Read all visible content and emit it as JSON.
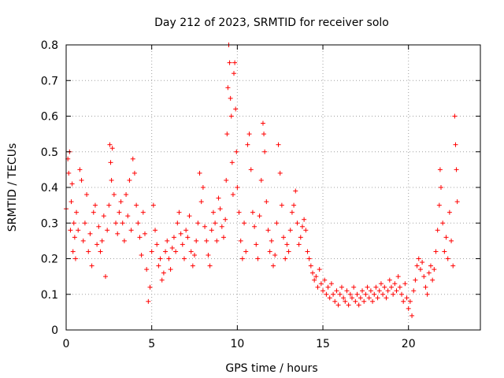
{
  "chart_data": {
    "type": "scatter",
    "title": "Day 212 of 2023, SRMTID for receiver solo",
    "xlabel": "GPS time / hours",
    "ylabel": "SRMTID / TECUs",
    "xlim": [
      0,
      24.2
    ],
    "ylim": [
      0,
      0.8
    ],
    "x_ticks": [
      0,
      5,
      10,
      15,
      20
    ],
    "y_ticks": [
      0,
      0.1,
      0.2,
      0.3,
      0.4,
      0.5,
      0.6,
      0.7,
      0.8
    ],
    "x_tick_labels": [
      "0",
      "5",
      "10",
      "15",
      "20"
    ],
    "y_tick_labels": [
      "0",
      "0.1",
      "0.2",
      "0.3",
      "0.4",
      "0.5",
      "0.6",
      "0.7",
      "0.8"
    ],
    "grid": true,
    "marker": "+",
    "series": [
      {
        "name": "SRMTID",
        "color": "#ff0000",
        "points": [
          [
            0.0,
            0.34
          ],
          [
            0.1,
            0.48
          ],
          [
            0.15,
            0.44
          ],
          [
            0.2,
            0.5
          ],
          [
            0.25,
            0.28
          ],
          [
            0.3,
            0.36
          ],
          [
            0.35,
            0.41
          ],
          [
            0.4,
            0.22
          ],
          [
            0.45,
            0.3
          ],
          [
            0.5,
            0.26
          ],
          [
            0.55,
            0.2
          ],
          [
            0.6,
            0.33
          ],
          [
            0.7,
            0.28
          ],
          [
            0.8,
            0.45
          ],
          [
            0.9,
            0.42
          ],
          [
            1.0,
            0.25
          ],
          [
            1.1,
            0.3
          ],
          [
            1.2,
            0.38
          ],
          [
            1.3,
            0.22
          ],
          [
            1.4,
            0.27
          ],
          [
            1.5,
            0.18
          ],
          [
            1.6,
            0.33
          ],
          [
            1.7,
            0.35
          ],
          [
            1.8,
            0.24
          ],
          [
            1.9,
            0.29
          ],
          [
            2.0,
            0.22
          ],
          [
            2.1,
            0.25
          ],
          [
            2.2,
            0.32
          ],
          [
            2.3,
            0.15
          ],
          [
            2.4,
            0.28
          ],
          [
            2.5,
            0.35
          ],
          [
            2.55,
            0.52
          ],
          [
            2.6,
            0.47
          ],
          [
            2.65,
            0.42
          ],
          [
            2.7,
            0.51
          ],
          [
            2.8,
            0.38
          ],
          [
            2.9,
            0.3
          ],
          [
            3.0,
            0.27
          ],
          [
            3.1,
            0.33
          ],
          [
            3.2,
            0.36
          ],
          [
            3.3,
            0.3
          ],
          [
            3.4,
            0.25
          ],
          [
            3.5,
            0.38
          ],
          [
            3.6,
            0.32
          ],
          [
            3.7,
            0.42
          ],
          [
            3.8,
            0.28
          ],
          [
            3.9,
            0.48
          ],
          [
            4.0,
            0.44
          ],
          [
            4.1,
            0.35
          ],
          [
            4.2,
            0.3
          ],
          [
            4.3,
            0.26
          ],
          [
            4.4,
            0.21
          ],
          [
            4.5,
            0.33
          ],
          [
            4.6,
            0.27
          ],
          [
            4.7,
            0.17
          ],
          [
            4.8,
            0.08
          ],
          [
            4.9,
            0.12
          ],
          [
            5.0,
            0.22
          ],
          [
            5.1,
            0.35
          ],
          [
            5.2,
            0.28
          ],
          [
            5.3,
            0.24
          ],
          [
            5.4,
            0.18
          ],
          [
            5.5,
            0.2
          ],
          [
            5.6,
            0.14
          ],
          [
            5.7,
            0.16
          ],
          [
            5.8,
            0.22
          ],
          [
            5.9,
            0.25
          ],
          [
            6.0,
            0.2
          ],
          [
            6.1,
            0.17
          ],
          [
            6.2,
            0.23
          ],
          [
            6.3,
            0.26
          ],
          [
            6.4,
            0.22
          ],
          [
            6.5,
            0.3
          ],
          [
            6.6,
            0.33
          ],
          [
            6.7,
            0.27
          ],
          [
            6.8,
            0.24
          ],
          [
            6.9,
            0.2
          ],
          [
            7.0,
            0.28
          ],
          [
            7.1,
            0.26
          ],
          [
            7.2,
            0.32
          ],
          [
            7.3,
            0.22
          ],
          [
            7.4,
            0.18
          ],
          [
            7.5,
            0.21
          ],
          [
            7.6,
            0.25
          ],
          [
            7.7,
            0.3
          ],
          [
            7.8,
            0.44
          ],
          [
            7.9,
            0.36
          ],
          [
            8.0,
            0.4
          ],
          [
            8.1,
            0.29
          ],
          [
            8.2,
            0.25
          ],
          [
            8.3,
            0.21
          ],
          [
            8.4,
            0.18
          ],
          [
            8.5,
            0.28
          ],
          [
            8.6,
            0.33
          ],
          [
            8.7,
            0.3
          ],
          [
            8.8,
            0.25
          ],
          [
            8.9,
            0.37
          ],
          [
            9.0,
            0.34
          ],
          [
            9.1,
            0.29
          ],
          [
            9.2,
            0.26
          ],
          [
            9.3,
            0.31
          ],
          [
            9.35,
            0.42
          ],
          [
            9.4,
            0.55
          ],
          [
            9.45,
            0.68
          ],
          [
            9.5,
            0.8
          ],
          [
            9.55,
            0.75
          ],
          [
            9.6,
            0.65
          ],
          [
            9.65,
            0.6
          ],
          [
            9.7,
            0.47
          ],
          [
            9.75,
            0.38
          ],
          [
            9.8,
            0.72
          ],
          [
            9.85,
            0.75
          ],
          [
            9.9,
            0.62
          ],
          [
            9.95,
            0.5
          ],
          [
            10.0,
            0.4
          ],
          [
            10.1,
            0.33
          ],
          [
            10.2,
            0.25
          ],
          [
            10.3,
            0.2
          ],
          [
            10.4,
            0.3
          ],
          [
            10.5,
            0.22
          ],
          [
            10.6,
            0.52
          ],
          [
            10.7,
            0.55
          ],
          [
            10.8,
            0.45
          ],
          [
            10.9,
            0.33
          ],
          [
            11.0,
            0.29
          ],
          [
            11.1,
            0.24
          ],
          [
            11.2,
            0.2
          ],
          [
            11.3,
            0.32
          ],
          [
            11.4,
            0.42
          ],
          [
            11.5,
            0.58
          ],
          [
            11.55,
            0.55
          ],
          [
            11.6,
            0.5
          ],
          [
            11.7,
            0.36
          ],
          [
            11.8,
            0.28
          ],
          [
            11.9,
            0.22
          ],
          [
            12.0,
            0.25
          ],
          [
            12.1,
            0.18
          ],
          [
            12.2,
            0.21
          ],
          [
            12.3,
            0.3
          ],
          [
            12.4,
            0.52
          ],
          [
            12.5,
            0.44
          ],
          [
            12.6,
            0.35
          ],
          [
            12.7,
            0.26
          ],
          [
            12.8,
            0.2
          ],
          [
            12.9,
            0.24
          ],
          [
            13.0,
            0.22
          ],
          [
            13.1,
            0.28
          ],
          [
            13.2,
            0.33
          ],
          [
            13.3,
            0.35
          ],
          [
            13.4,
            0.39
          ],
          [
            13.5,
            0.3
          ],
          [
            13.6,
            0.24
          ],
          [
            13.7,
            0.26
          ],
          [
            13.8,
            0.29
          ],
          [
            13.9,
            0.31
          ],
          [
            14.0,
            0.28
          ],
          [
            14.1,
            0.22
          ],
          [
            14.2,
            0.2
          ],
          [
            14.3,
            0.18
          ],
          [
            14.4,
            0.16
          ],
          [
            14.5,
            0.14
          ],
          [
            14.6,
            0.15
          ],
          [
            14.7,
            0.12
          ],
          [
            14.8,
            0.17
          ],
          [
            14.9,
            0.13
          ],
          [
            15.0,
            0.11
          ],
          [
            15.1,
            0.14
          ],
          [
            15.2,
            0.1
          ],
          [
            15.3,
            0.12
          ],
          [
            15.4,
            0.09
          ],
          [
            15.5,
            0.13
          ],
          [
            15.6,
            0.1
          ],
          [
            15.7,
            0.08
          ],
          [
            15.8,
            0.11
          ],
          [
            15.9,
            0.07
          ],
          [
            16.0,
            0.1
          ],
          [
            16.1,
            0.12
          ],
          [
            16.2,
            0.09
          ],
          [
            16.3,
            0.08
          ],
          [
            16.4,
            0.11
          ],
          [
            16.5,
            0.07
          ],
          [
            16.6,
            0.1
          ],
          [
            16.7,
            0.09
          ],
          [
            16.8,
            0.12
          ],
          [
            16.9,
            0.08
          ],
          [
            17.0,
            0.1
          ],
          [
            17.1,
            0.07
          ],
          [
            17.2,
            0.09
          ],
          [
            17.3,
            0.11
          ],
          [
            17.4,
            0.08
          ],
          [
            17.5,
            0.1
          ],
          [
            17.6,
            0.12
          ],
          [
            17.7,
            0.09
          ],
          [
            17.8,
            0.11
          ],
          [
            17.9,
            0.08
          ],
          [
            18.0,
            0.1
          ],
          [
            18.1,
            0.12
          ],
          [
            18.2,
            0.09
          ],
          [
            18.3,
            0.11
          ],
          [
            18.4,
            0.13
          ],
          [
            18.5,
            0.1
          ],
          [
            18.6,
            0.12
          ],
          [
            18.7,
            0.09
          ],
          [
            18.8,
            0.11
          ],
          [
            18.9,
            0.14
          ],
          [
            19.0,
            0.12
          ],
          [
            19.1,
            0.1
          ],
          [
            19.2,
            0.13
          ],
          [
            19.3,
            0.11
          ],
          [
            19.4,
            0.15
          ],
          [
            19.5,
            0.12
          ],
          [
            19.6,
            0.1
          ],
          [
            19.7,
            0.08
          ],
          [
            19.8,
            0.13
          ],
          [
            19.9,
            0.09
          ],
          [
            20.0,
            0.06
          ],
          [
            20.1,
            0.08
          ],
          [
            20.2,
            0.04
          ],
          [
            20.3,
            0.11
          ],
          [
            20.4,
            0.14
          ],
          [
            20.5,
            0.18
          ],
          [
            20.6,
            0.2
          ],
          [
            20.7,
            0.17
          ],
          [
            20.8,
            0.19
          ],
          [
            20.9,
            0.15
          ],
          [
            21.0,
            0.12
          ],
          [
            21.1,
            0.1
          ],
          [
            21.2,
            0.16
          ],
          [
            21.3,
            0.18
          ],
          [
            21.4,
            0.14
          ],
          [
            21.5,
            0.17
          ],
          [
            21.6,
            0.22
          ],
          [
            21.7,
            0.28
          ],
          [
            21.8,
            0.35
          ],
          [
            21.85,
            0.45
          ],
          [
            21.9,
            0.4
          ],
          [
            22.0,
            0.3
          ],
          [
            22.1,
            0.22
          ],
          [
            22.2,
            0.26
          ],
          [
            22.3,
            0.2
          ],
          [
            22.4,
            0.33
          ],
          [
            22.5,
            0.25
          ],
          [
            22.6,
            0.18
          ],
          [
            22.7,
            0.6
          ],
          [
            22.75,
            0.52
          ],
          [
            22.8,
            0.45
          ],
          [
            22.85,
            0.36
          ]
        ]
      }
    ]
  }
}
